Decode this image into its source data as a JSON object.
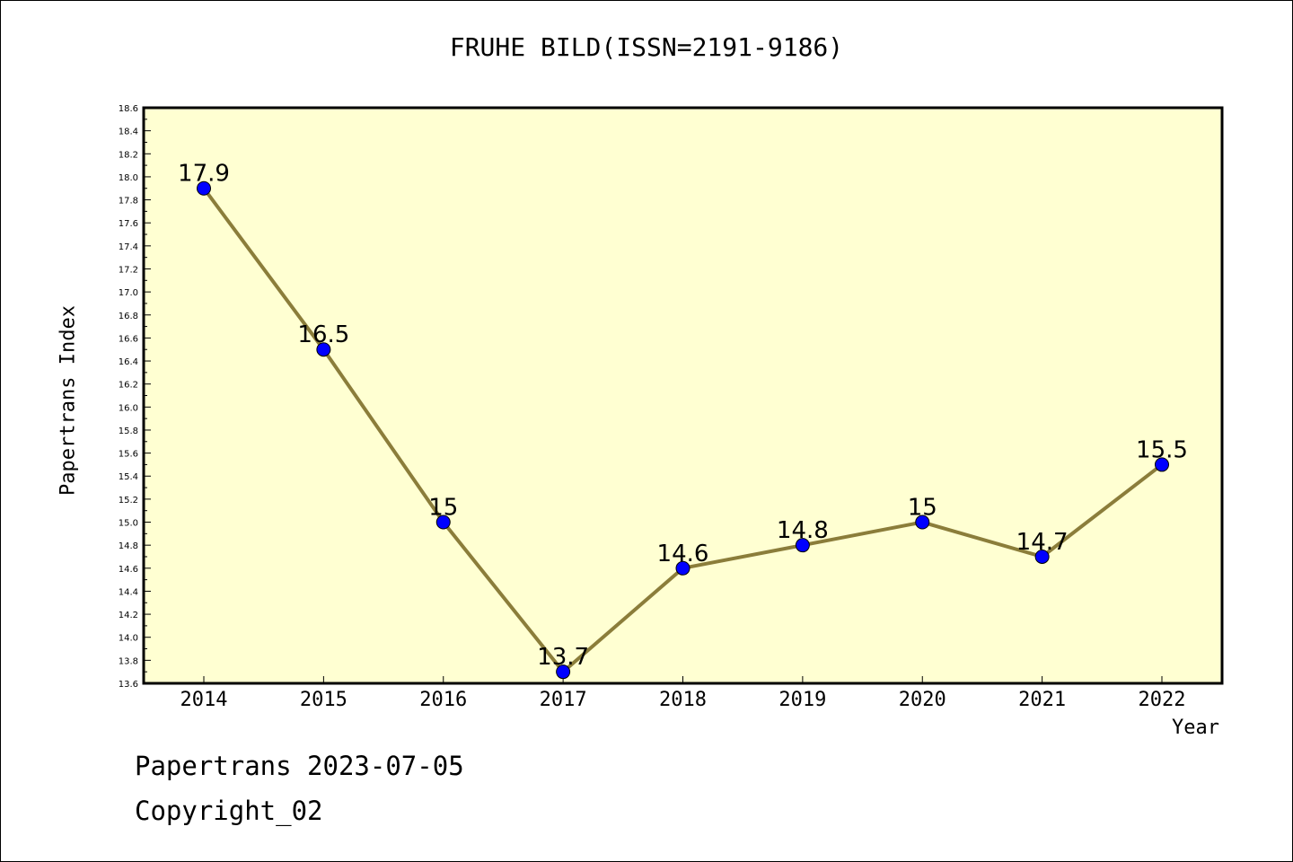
{
  "title": "FRUHE BILD(ISSN=2191-9186)",
  "footer": {
    "date_line": "Papertrans 2023-07-05",
    "copyright_line": "Copyright_02"
  },
  "colors": {
    "plot_background": "#ffffd2",
    "line": "#8b7d3a",
    "marker": "#0000ff"
  },
  "chart_data": {
    "type": "line",
    "title": "FRUHE BILD(ISSN=2191-9186)",
    "xlabel": "Year",
    "ylabel": "Papertrans Index",
    "categories": [
      "2014",
      "2015",
      "2016",
      "2017",
      "2018",
      "2019",
      "2020",
      "2021",
      "2022"
    ],
    "values": [
      17.9,
      16.5,
      15,
      13.7,
      14.6,
      14.8,
      15,
      14.7,
      15.5
    ],
    "data_labels": [
      "17.9",
      "16.5",
      "15",
      "13.7",
      "14.6",
      "14.8",
      "15",
      "14.7",
      "15.5"
    ],
    "ylim": [
      13.6,
      18.6
    ],
    "ytick_labels": [
      "13.6",
      "13.8",
      "14.0",
      "14.2",
      "14.4",
      "14.6",
      "14.8",
      "15.0",
      "15.2",
      "15.4",
      "15.6",
      "15.8",
      "16.0",
      "16.2",
      "16.4",
      "16.6",
      "16.8",
      "17.0",
      "17.2",
      "17.4",
      "17.6",
      "17.8",
      "18.0",
      "18.2",
      "18.4",
      "18.6"
    ],
    "grid": false,
    "legend": "none"
  }
}
